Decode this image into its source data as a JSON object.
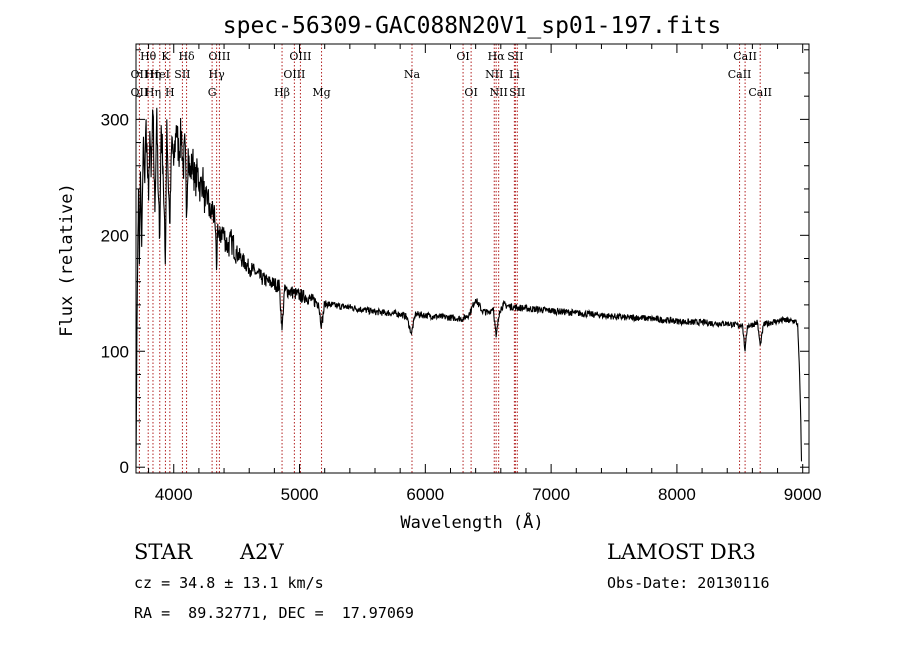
{
  "chart_data": {
    "type": "line",
    "title": "spec-56309-GAC088N20V1_sp01-197.fits",
    "xlabel": "Wavelength (Å)",
    "ylabel": "Flux (relative)",
    "xlim": [
      3700,
      9050
    ],
    "ylim": [
      -5,
      365
    ],
    "xticks": [
      4000,
      5000,
      6000,
      7000,
      8000,
      9000
    ],
    "yticks": [
      0,
      100,
      200,
      300
    ],
    "grid": false,
    "line_color": "#000000",
    "marker_color": "#b22222",
    "spectrum": {
      "name": "flux",
      "x": [
        3700,
        3705,
        3710,
        3715,
        3720,
        3727,
        3735,
        3745,
        3760,
        3770,
        3780,
        3790,
        3800,
        3810,
        3820,
        3835,
        3850,
        3865,
        3875,
        3889,
        3900,
        3915,
        3933,
        3945,
        3955,
        3970,
        3985,
        4000,
        4020,
        4040,
        4060,
        4075,
        4090,
        4101,
        4115,
        4130,
        4150,
        4170,
        4190,
        4210,
        4230,
        4250,
        4270,
        4290,
        4310,
        4330,
        4340,
        4350,
        4365,
        4380,
        4400,
        4430,
        4460,
        4500,
        4550,
        4600,
        4650,
        4700,
        4750,
        4800,
        4840,
        4861,
        4880,
        4920,
        4960,
        5000,
        5050,
        5100,
        5150,
        5175,
        5200,
        5250,
        5300,
        5400,
        5500,
        5600,
        5700,
        5800,
        5850,
        5890,
        5920,
        6000,
        6100,
        6200,
        6300,
        6350,
        6400,
        6450,
        6500,
        6540,
        6563,
        6590,
        6620,
        6700,
        6800,
        6900,
        7000,
        7100,
        7200,
        7300,
        7400,
        7500,
        7600,
        7700,
        7800,
        7900,
        8000,
        8100,
        8200,
        8300,
        8400,
        8450,
        8498,
        8520,
        8542,
        8560,
        8600,
        8640,
        8662,
        8690,
        8750,
        8800,
        8850,
        8900,
        8940,
        8960,
        8975,
        8985,
        8990
      ],
      "y": [
        0,
        70,
        150,
        200,
        240,
        175,
        255,
        190,
        285,
        245,
        300,
        260,
        230,
        290,
        250,
        305,
        220,
        310,
        240,
        200,
        295,
        260,
        175,
        300,
        250,
        210,
        285,
        260,
        295,
        270,
        290,
        255,
        280,
        215,
        275,
        250,
        265,
        245,
        255,
        240,
        250,
        225,
        235,
        215,
        225,
        205,
        170,
        210,
        195,
        205,
        200,
        190,
        195,
        185,
        178,
        172,
        168,
        163,
        160,
        158,
        156,
        118,
        152,
        152,
        150,
        148,
        147,
        144,
        142,
        122,
        141,
        140,
        139,
        138,
        136,
        134,
        133,
        132,
        130,
        115,
        132,
        131,
        130,
        129,
        128,
        132,
        145,
        135,
        133,
        138,
        112,
        135,
        140,
        138,
        137,
        136,
        135,
        134,
        133,
        132,
        131,
        130,
        129,
        129,
        128,
        127,
        126,
        125,
        125,
        124,
        124,
        123,
        122,
        124,
        100,
        122,
        123,
        125,
        105,
        123,
        125,
        126,
        127,
        126,
        126,
        123,
        80,
        40,
        5
      ]
    },
    "annotations": [
      {
        "label": "Hθ",
        "x": 3797,
        "row": 0
      },
      {
        "label": "OII",
        "x": 3727,
        "row": 1
      },
      {
        "label": "OII",
        "x": 3727,
        "row": 2
      },
      {
        "label": "Hη",
        "x": 3835,
        "row": 1
      },
      {
        "label": "HeI",
        "x": 3889,
        "row": 1
      },
      {
        "label": "Hη",
        "x": 3835,
        "row": 2
      },
      {
        "label": "K",
        "x": 3934,
        "row": 0
      },
      {
        "label": "SII",
        "x": 4069,
        "row": 1
      },
      {
        "label": "H",
        "x": 3969,
        "row": 2
      },
      {
        "label": "Hδ",
        "x": 4102,
        "row": 0
      },
      {
        "label": "OIII",
        "x": 4363,
        "row": 0
      },
      {
        "label": "Hγ",
        "x": 4341,
        "row": 1
      },
      {
        "label": "G",
        "x": 4305,
        "row": 2
      },
      {
        "label": "Hβ",
        "x": 4861,
        "row": 2
      },
      {
        "label": "OIII",
        "x": 5007,
        "row": 0
      },
      {
        "label": "OIII",
        "x": 4959,
        "row": 1
      },
      {
        "label": "Mg",
        "x": 5175,
        "row": 2
      },
      {
        "label": "Na",
        "x": 5894,
        "row": 1
      },
      {
        "label": "OI",
        "x": 6300,
        "row": 0
      },
      {
        "label": "OI",
        "x": 6364,
        "row": 2
      },
      {
        "label": "Hα",
        "x": 6563,
        "row": 0
      },
      {
        "label": "NII",
        "x": 6548,
        "row": 1
      },
      {
        "label": "NII",
        "x": 6583,
        "row": 2
      },
      {
        "label": "SII",
        "x": 6716,
        "row": 0
      },
      {
        "label": "Li",
        "x": 6708,
        "row": 1
      },
      {
        "label": "SII",
        "x": 6731,
        "row": 2
      },
      {
        "label": "CaII",
        "x": 8542,
        "row": 0
      },
      {
        "label": "CaII",
        "x": 8498,
        "row": 1
      },
      {
        "label": "CaII",
        "x": 8662,
        "row": 2
      }
    ],
    "marker_lines": [
      3727,
      3797,
      3835,
      3889,
      3934,
      3969,
      4069,
      4102,
      4305,
      4341,
      4363,
      4861,
      4959,
      5007,
      5175,
      5894,
      6300,
      6364,
      6548,
      6563,
      6583,
      6708,
      6716,
      6731,
      8498,
      8542,
      8662
    ]
  },
  "info": {
    "object_class": "STAR",
    "subclass": "A2V",
    "survey": "LAMOST DR3",
    "cz": "cz = 34.8 ± 13.1 km/s",
    "obs_date": "Obs-Date: 20130116",
    "coords": "RA =  89.32771, DEC =  17.97069"
  }
}
